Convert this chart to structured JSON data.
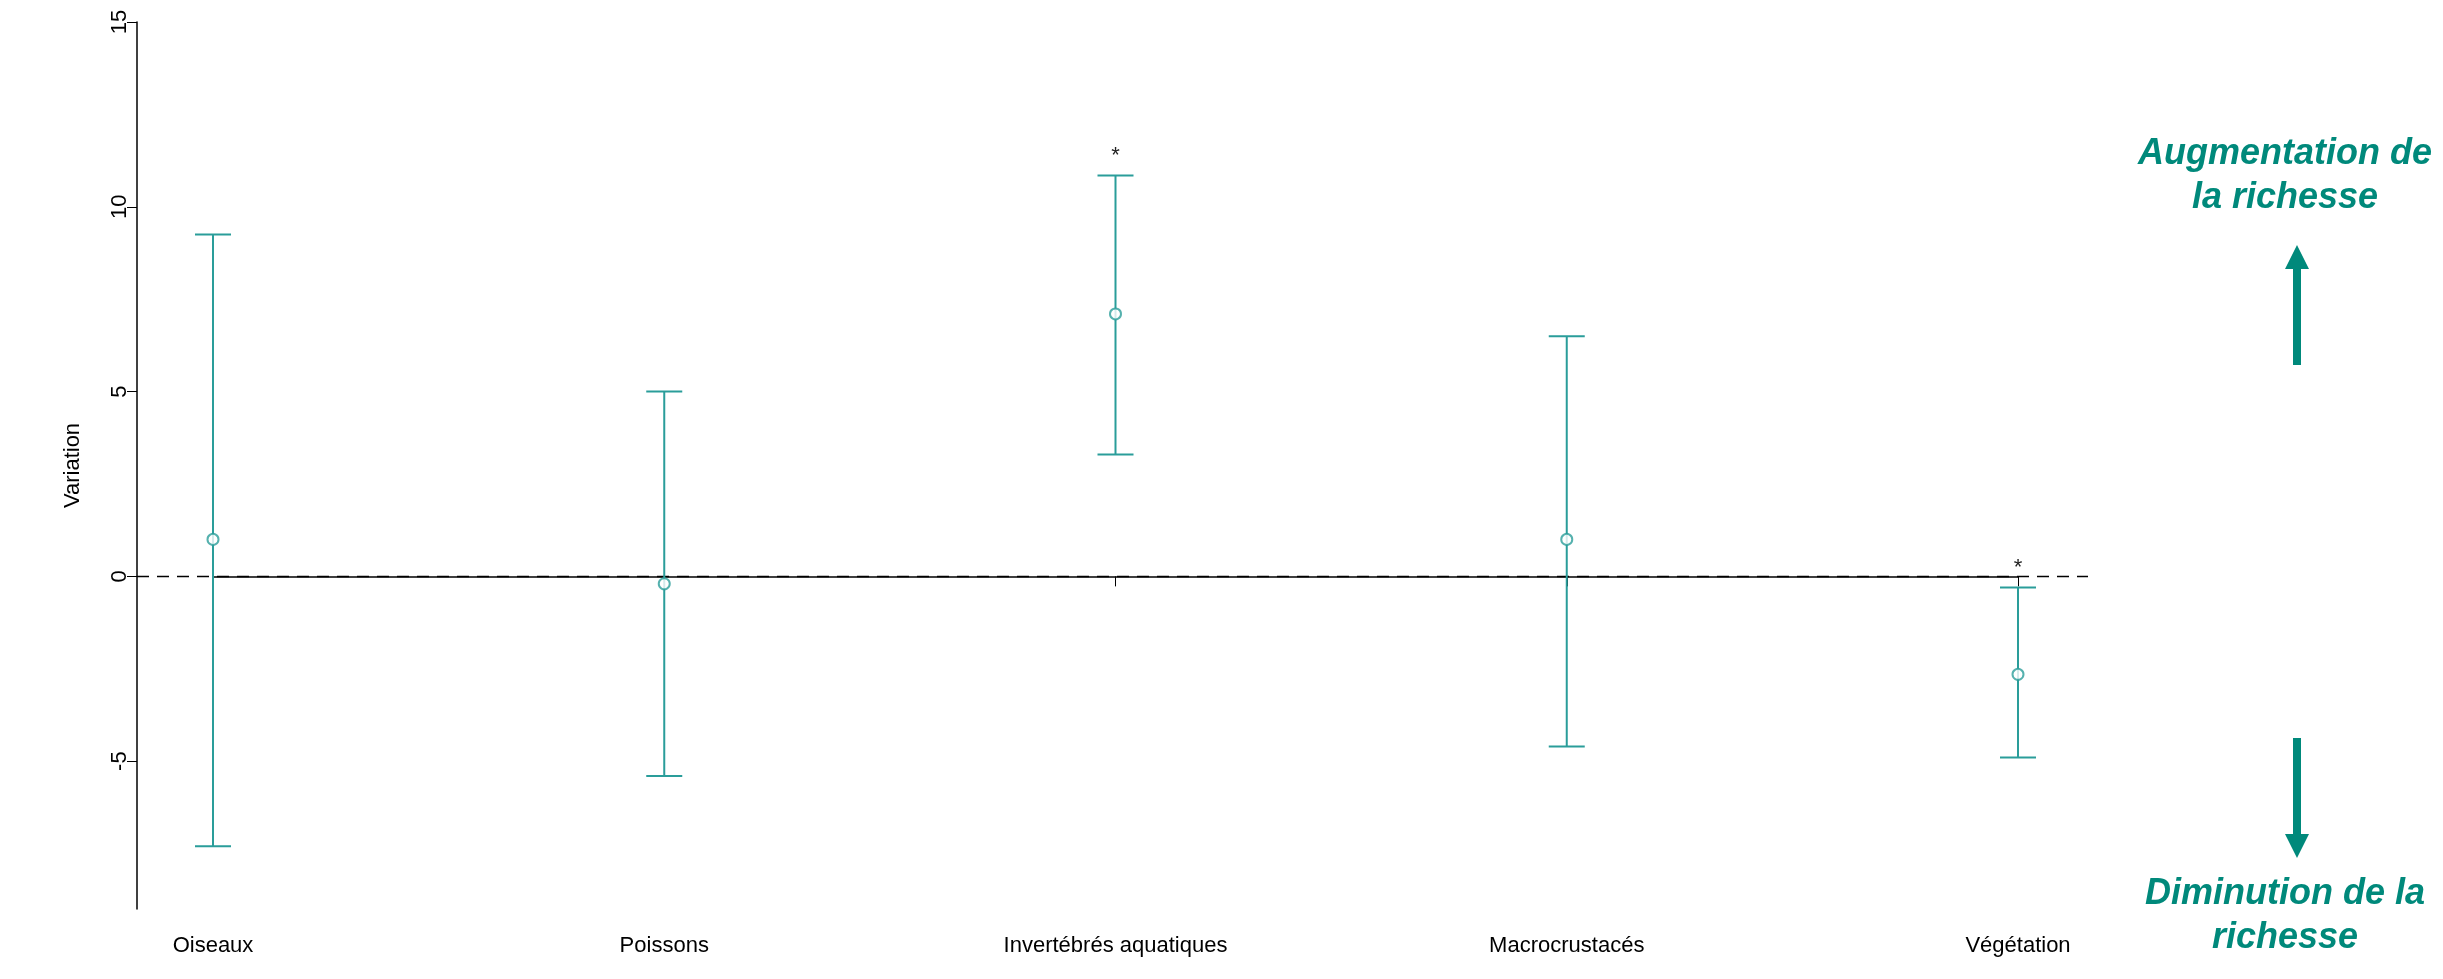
{
  "chart_data": {
    "type": "scatter",
    "ylabel": "Variation",
    "categories": [
      "Oiseaux",
      "Poissons",
      "Invertébrés aquatiques",
      "Macrocrustacés",
      "Végétation"
    ],
    "values": [
      1.0,
      -0.2,
      7.1,
      1.0,
      -2.65
    ],
    "errors": [
      [
        -7.3,
        9.25
      ],
      [
        -5.4,
        5.0
      ],
      [
        3.3,
        10.85
      ],
      [
        -4.6,
        6.5
      ],
      [
        -4.9,
        -0.3
      ]
    ],
    "color": "#2a9d9a",
    "marker": "circle",
    "ylim": [
      -9,
      15
    ],
    "yticks": [
      -5,
      0,
      5,
      10,
      15
    ],
    "grid": false,
    "ref_lines": [
      {
        "axis": "y",
        "value": 0,
        "color": "#000000",
        "line_style": "dashed"
      }
    ],
    "annotations": [
      {
        "text": "*",
        "x": "Invertébrés aquatiques",
        "y": 10.85
      },
      {
        "text": "*",
        "x": "Végétation",
        "y": -0.3
      },
      "Augmentation de la richesse",
      "Diminution de la richesse"
    ]
  }
}
